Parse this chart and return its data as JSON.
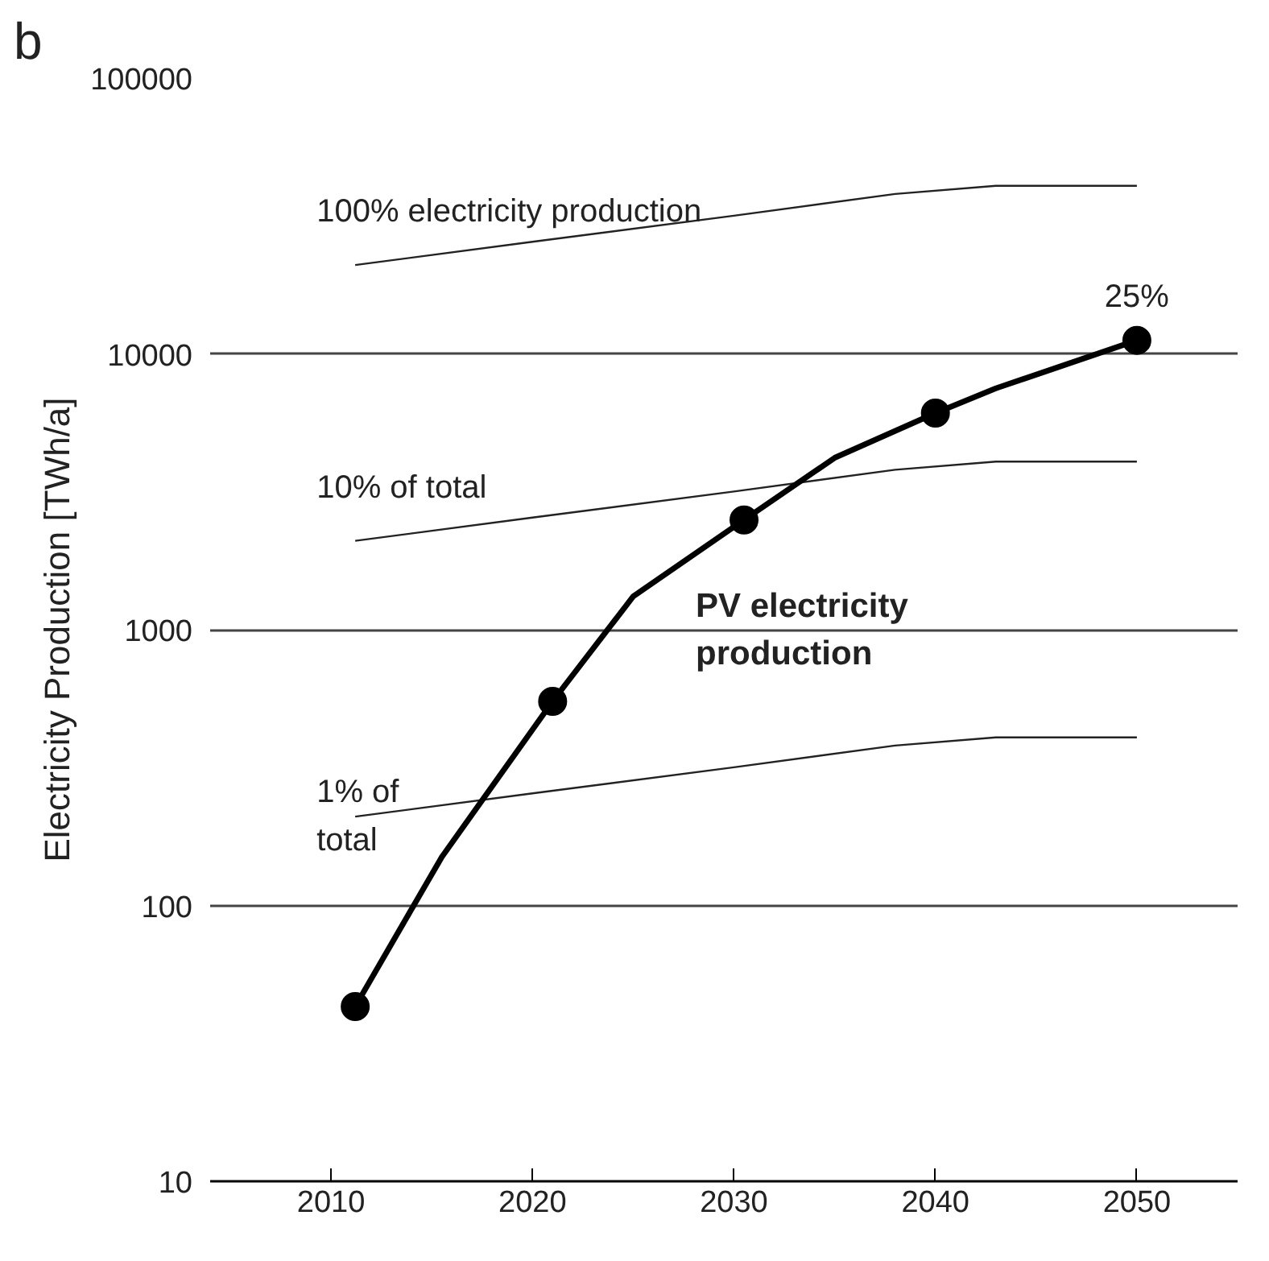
{
  "chart_data": {
    "type": "line",
    "ylabel": "Electricity Production [TWh/a]",
    "log": "y",
    "xlim": [
      2004,
      2055
    ],
    "xticks": [
      2010,
      2020,
      2030,
      2040,
      2050
    ],
    "ylim": [
      10,
      100000
    ],
    "yticks": [
      10,
      100,
      1000,
      10000,
      100000
    ],
    "grid": "y",
    "series": [
      {
        "name": "100% electricity production",
        "color": "#222222",
        "x": [
          2011.2,
          2020,
          2030,
          2038,
          2043,
          2050
        ],
        "values": [
          21000,
          25500,
          31700,
          38000,
          40700,
          40700
        ]
      },
      {
        "name": "10% of total",
        "color": "#222222",
        "x": [
          2011.2,
          2020,
          2030,
          2038,
          2043,
          2050
        ],
        "values": [
          2100,
          2550,
          3170,
          3800,
          4070,
          4070
        ]
      },
      {
        "name": "1% of\ntotal",
        "color": "#222222",
        "x": [
          2011.2,
          2020,
          2030,
          2038,
          2043,
          2050
        ],
        "values": [
          210,
          255,
          317,
          380,
          407,
          407
        ]
      },
      {
        "name": "PV electricity\nproduction",
        "color": "#000000",
        "x": [
          2011.2,
          2015.5,
          2021,
          2025,
          2030.5,
          2035,
          2040,
          2043,
          2050
        ],
        "values": [
          43,
          150,
          550,
          1320,
          2500,
          4200,
          6100,
          7500,
          11200
        ]
      },
      {
        "type": "scatter",
        "color": "#000000",
        "marker": "circle",
        "x": [
          2011.2,
          2021,
          2030.5,
          2040,
          2050
        ],
        "values": [
          43,
          550,
          2500,
          6100,
          11200
        ]
      }
    ],
    "annotations": [
      "b",
      {
        "text": "25%",
        "x": 2050,
        "y": 11200
      }
    ]
  }
}
